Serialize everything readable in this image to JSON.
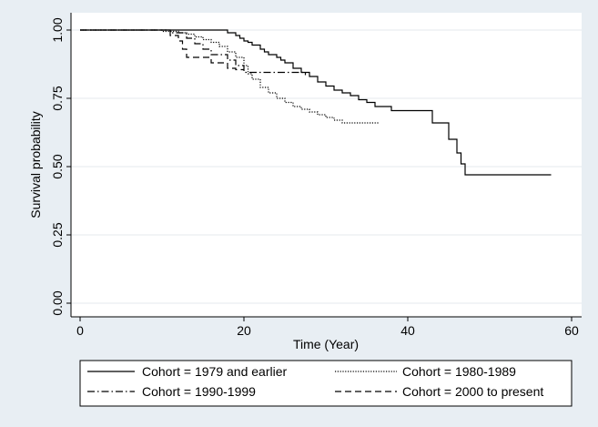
{
  "chart_data": {
    "type": "line",
    "xlabel": "Time (Year)",
    "ylabel": "Survival probability",
    "xlim": [
      0,
      60
    ],
    "ylim": [
      0,
      1
    ],
    "x_ticks": [
      0,
      20,
      40,
      60
    ],
    "y_ticks": [
      0.0,
      0.25,
      0.5,
      0.75,
      1.0
    ],
    "x_tick_labels": [
      "0",
      "20",
      "40",
      "60"
    ],
    "y_tick_labels": [
      "0.00",
      "0.25",
      "0.50",
      "0.75",
      "1.00"
    ],
    "grid": true,
    "legend_position": "bottom",
    "series": [
      {
        "name": "Cohort = 1979 and earlier",
        "line_style": "solid",
        "x": [
          0,
          17.5,
          18,
          19,
          19.5,
          20,
          20.5,
          21,
          22,
          22.5,
          23,
          24,
          24.5,
          25,
          26,
          27,
          28,
          29,
          30,
          31,
          32,
          33,
          34,
          35,
          36,
          38,
          42,
          43,
          44.5,
          45,
          45.5,
          46,
          46.5,
          47,
          57.5
        ],
        "y": [
          1.0,
          1.0,
          0.99,
          0.98,
          0.97,
          0.96,
          0.955,
          0.945,
          0.93,
          0.92,
          0.91,
          0.9,
          0.89,
          0.88,
          0.86,
          0.845,
          0.83,
          0.81,
          0.795,
          0.78,
          0.77,
          0.76,
          0.745,
          0.735,
          0.72,
          0.705,
          0.705,
          0.66,
          0.66,
          0.6,
          0.6,
          0.55,
          0.51,
          0.47,
          0.47
        ]
      },
      {
        "name": "Cohort = 1980-1989",
        "line_style": "dotted",
        "x": [
          0,
          8,
          10,
          12,
          13,
          14,
          15,
          16,
          17,
          18,
          19,
          20,
          20.5,
          21,
          22,
          23,
          24,
          25,
          26,
          27,
          28,
          29,
          30,
          31,
          32,
          33,
          36.5
        ],
        "y": [
          1.0,
          1.0,
          0.995,
          0.99,
          0.985,
          0.975,
          0.965,
          0.955,
          0.94,
          0.92,
          0.9,
          0.87,
          0.84,
          0.82,
          0.79,
          0.77,
          0.75,
          0.735,
          0.72,
          0.71,
          0.7,
          0.69,
          0.68,
          0.67,
          0.66,
          0.66,
          0.66
        ]
      },
      {
        "name": "Cohort = 1990-1999",
        "line_style": "dash-dot",
        "x": [
          0,
          9,
          11,
          13,
          14,
          15,
          16,
          18,
          19,
          20,
          26,
          27.5
        ],
        "y": [
          1.0,
          1.0,
          0.99,
          0.97,
          0.95,
          0.93,
          0.91,
          0.89,
          0.87,
          0.845,
          0.845,
          0.835
        ]
      },
      {
        "name": "Cohort = 2000 to present",
        "line_style": "dashed",
        "x": [
          0,
          10,
          11,
          12,
          12.5,
          13,
          15,
          16,
          18,
          19,
          20
        ],
        "y": [
          1.0,
          1.0,
          0.98,
          0.96,
          0.93,
          0.9,
          0.9,
          0.88,
          0.86,
          0.855,
          0.855
        ]
      }
    ]
  }
}
